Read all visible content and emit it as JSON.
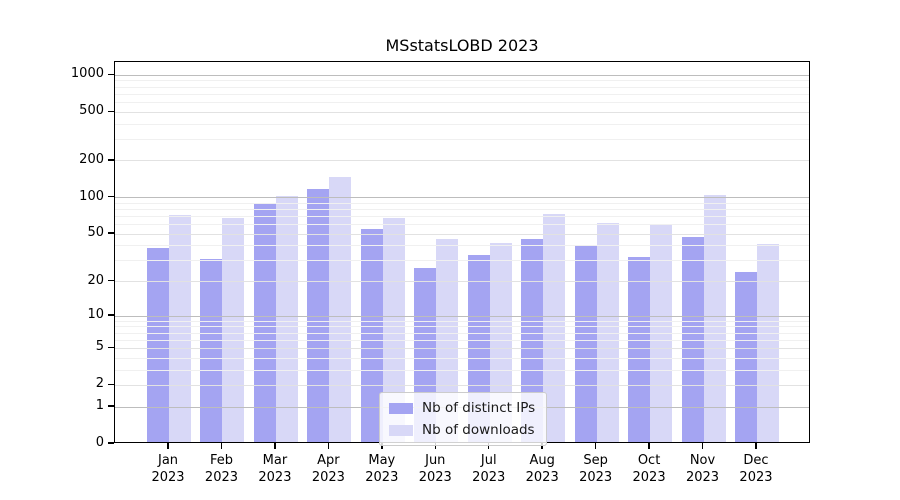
{
  "chart_data": {
    "type": "bar",
    "title": "MSstatsLOBD 2023",
    "categories": [
      "Jan",
      "Feb",
      "Mar",
      "Apr",
      "May",
      "Jun",
      "Jul",
      "Aug",
      "Sep",
      "Oct",
      "Nov",
      "Dec"
    ],
    "x_year": "2023",
    "series": [
      {
        "name": "Nb of distinct IPs",
        "color": "#a4a4f2",
        "values": [
          37,
          30,
          87,
          113,
          53,
          25,
          32,
          44,
          39,
          31,
          46,
          23
        ]
      },
      {
        "name": "Nb of downloads",
        "color": "#d8d8f7",
        "values": [
          70,
          66,
          100,
          142,
          65,
          44,
          41,
          71,
          60,
          59,
          101,
          40
        ]
      }
    ],
    "y_axis": {
      "scale": "log1p",
      "tick_labels": [
        "0",
        "1",
        "2",
        "5",
        "10",
        "20",
        "50",
        "100",
        "200",
        "500",
        "1000"
      ],
      "ticks": [
        0,
        1,
        2,
        5,
        10,
        20,
        50,
        100,
        200,
        500,
        1000
      ],
      "major_grid": [
        1,
        10,
        100,
        1000
      ],
      "mid_grid": [
        2,
        5,
        20,
        50,
        200,
        500
      ],
      "minor_grid": [
        3,
        4,
        6,
        7,
        8,
        9,
        30,
        40,
        60,
        70,
        80,
        90,
        300,
        400,
        600,
        700,
        800,
        900
      ],
      "top_value": 1284
    },
    "xlabel": "",
    "ylabel": "",
    "grid": true,
    "legend_position": "lower center",
    "colors": {
      "grid_major": "#bdbdbd",
      "grid_mid": "#e2e2e2",
      "grid_minor": "#f0f0f0",
      "spine": "#000000",
      "background": "#ffffff"
    }
  }
}
